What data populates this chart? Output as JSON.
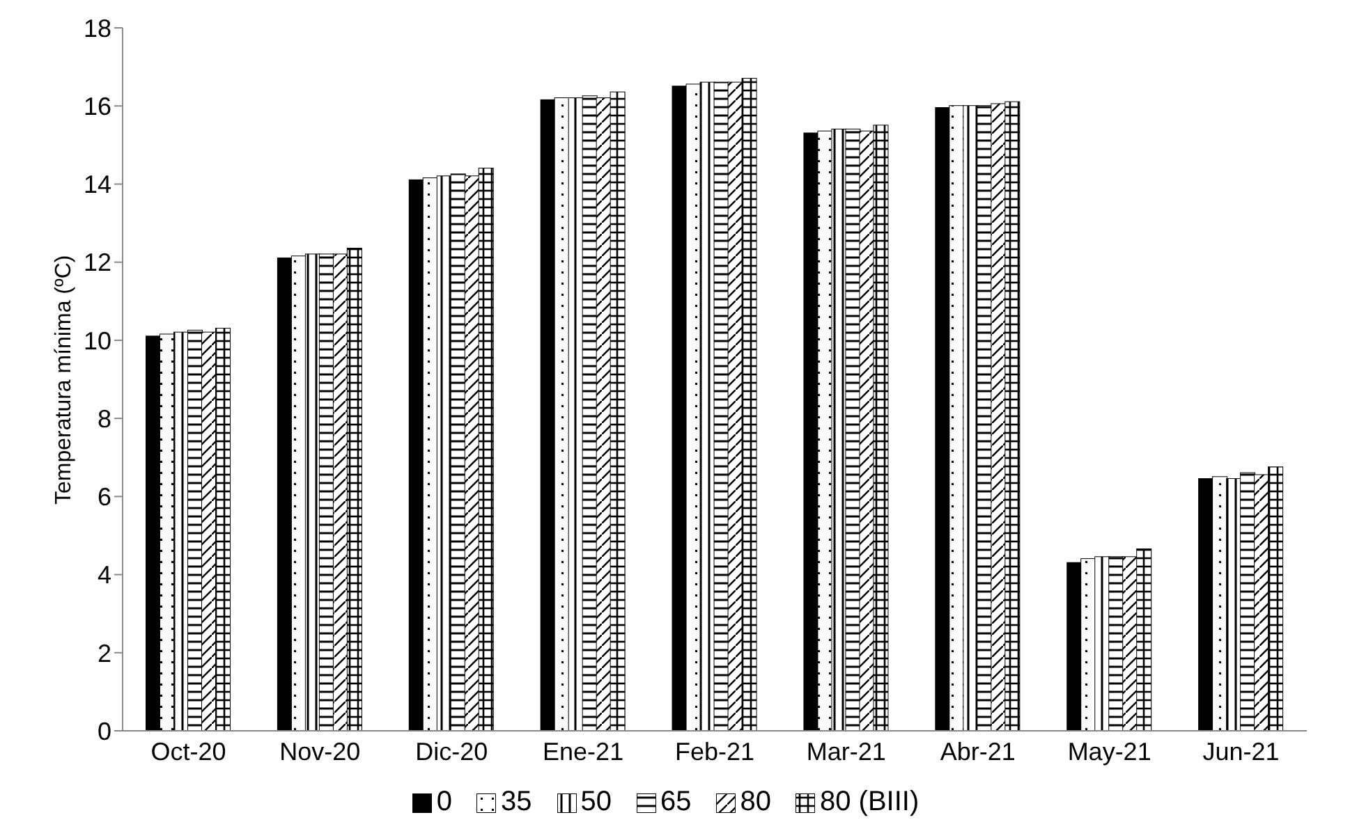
{
  "chart_data": {
    "type": "bar",
    "ylabel": "Temperatura mínima  (ºC)",
    "categories": [
      "Oct-20",
      "Nov-20",
      "Dic-20",
      "Ene-21",
      "Feb-21",
      "Mar-21",
      "Abr-21",
      "May-21",
      "Jun-21"
    ],
    "series": [
      {
        "name": "0",
        "color": "#000000",
        "values": [
          10.1,
          12.1,
          14.1,
          16.15,
          16.5,
          15.3,
          15.95,
          4.3,
          6.45
        ]
      },
      {
        "name": "35",
        "color": "#ffffff",
        "values": [
          10.15,
          12.15,
          14.15,
          16.2,
          16.55,
          15.35,
          16.0,
          4.4,
          6.5
        ]
      },
      {
        "name": "50",
        "color": "#ffffff",
        "values": [
          10.2,
          12.2,
          14.2,
          16.2,
          16.6,
          15.4,
          16.0,
          4.45,
          6.45
        ]
      },
      {
        "name": "65",
        "color": "#ffffff",
        "values": [
          10.25,
          12.2,
          14.25,
          16.25,
          16.6,
          15.4,
          16.0,
          4.45,
          6.6
        ]
      },
      {
        "name": "80",
        "color": "#ffffff",
        "values": [
          10.2,
          12.2,
          14.2,
          16.2,
          16.6,
          15.35,
          16.05,
          4.45,
          6.55
        ]
      },
      {
        "name": "80 (BIII)",
        "color": "#ffffff",
        "values": [
          10.3,
          12.35,
          14.4,
          16.35,
          16.7,
          15.5,
          16.1,
          4.65,
          6.75
        ]
      }
    ],
    "ylim": [
      0,
      18
    ],
    "yticks": [
      0,
      2,
      4,
      6,
      8,
      10,
      12,
      14,
      16,
      18
    ],
    "grid": false,
    "legend": "bottom"
  }
}
